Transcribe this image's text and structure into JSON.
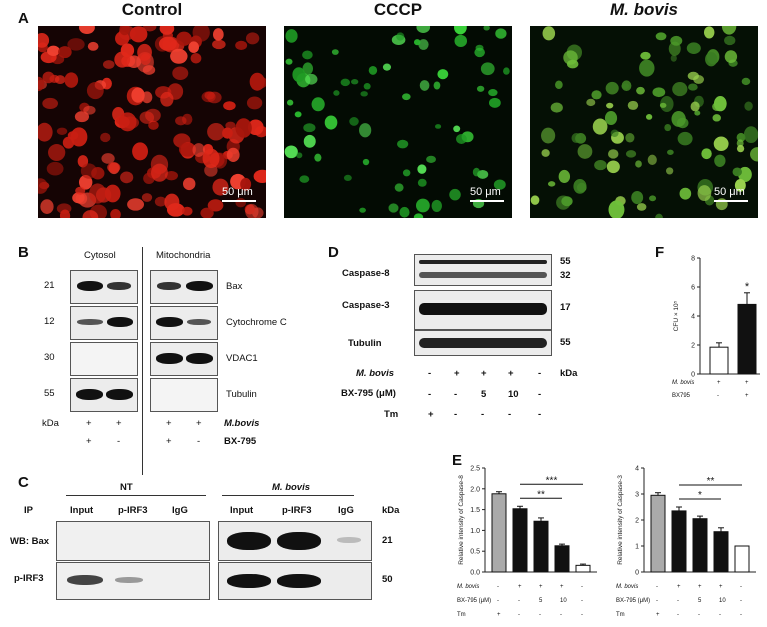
{
  "panelA": {
    "letter": "A",
    "titles": [
      "Control",
      "CCCP",
      "M. bovis"
    ],
    "scale": "50 μm"
  },
  "panelB": {
    "letter": "B",
    "cytosol": "Cytosol",
    "mito": "Mitochondria",
    "kda_values": [
      "21",
      "12",
      "30",
      "55"
    ],
    "proteins": [
      "Bax",
      "Cytochrome C",
      "VDAC1",
      "Tubulin"
    ],
    "kda": "kDa",
    "row1_label": "M.bovis",
    "row2_label": "BX-795",
    "row1": [
      "+",
      "+",
      "+",
      "+"
    ],
    "row2": [
      "+",
      "-",
      "+",
      "-"
    ]
  },
  "panelC": {
    "letter": "C",
    "ip": "IP",
    "nt": "NT",
    "mbovis": "M. bovis",
    "lanes": [
      "Input",
      "p-IRF3",
      "IgG"
    ],
    "kda": "kDa",
    "rows": [
      "WB: Bax",
      "p-IRF3"
    ],
    "kda_values": [
      "21",
      "50"
    ]
  },
  "panelD": {
    "letter": "D",
    "proteins": [
      "Caspase-8",
      "Caspase-3",
      "Tubulin"
    ],
    "kda_values": [
      "55",
      "32",
      "17",
      "55"
    ],
    "kda": "kDa",
    "row_labels": [
      "M. bovis",
      "BX-795 (μM)",
      "Tm"
    ],
    "rows": [
      [
        "-",
        "+",
        "+",
        "+",
        "-"
      ],
      [
        "-",
        "-",
        "5",
        "10",
        "-"
      ],
      [
        "+",
        "-",
        "-",
        "-",
        "-"
      ]
    ]
  },
  "panelE": {
    "letter": "E",
    "row_labels": [
      "M. bovis",
      "BX-795 (μM)",
      "Tm"
    ],
    "rows": [
      [
        "-",
        "+",
        "+",
        "+",
        "-"
      ],
      [
        "-",
        "-",
        "5",
        "10",
        "-"
      ],
      [
        "+",
        "-",
        "-",
        "-",
        "-"
      ]
    ]
  },
  "panelF": {
    "letter": "F",
    "row_labels": [
      "M. bovis",
      "BX795"
    ],
    "rows": [
      [
        "+",
        "+"
      ],
      [
        "-",
        "+"
      ]
    ]
  },
  "chart_data": [
    {
      "type": "bar",
      "ylabel": "Relative intensity of Caspase-8",
      "ylim": [
        0,
        2.5
      ],
      "yticks": [
        "0.0",
        "0.5",
        "1.0",
        "1.5",
        "2.0",
        "2.5"
      ],
      "values": [
        1.88,
        1.52,
        1.22,
        0.63,
        0.16
      ],
      "errors": [
        0.05,
        0.06,
        0.08,
        0.04,
        0.03
      ],
      "colors": [
        "#aaaaaa",
        "#111111",
        "#111111",
        "#111111",
        "#ffffff"
      ],
      "significance": [
        {
          "from": 1,
          "to": 3,
          "label": "**"
        },
        {
          "from": 1,
          "to": 4,
          "label": "***"
        }
      ]
    },
    {
      "type": "bar",
      "ylabel": "Relative intensity of Caspase-3",
      "ylim": [
        0,
        4
      ],
      "yticks": [
        "0",
        "1",
        "2",
        "3",
        "4"
      ],
      "values": [
        2.95,
        2.35,
        2.05,
        1.55,
        1.0
      ],
      "errors": [
        0.1,
        0.15,
        0.1,
        0.15,
        0.0
      ],
      "colors": [
        "#aaaaaa",
        "#111111",
        "#111111",
        "#111111",
        "#ffffff"
      ],
      "significance": [
        {
          "from": 1,
          "to": 3,
          "label": "*"
        },
        {
          "from": 1,
          "to": 4,
          "label": "**"
        }
      ]
    },
    {
      "type": "bar",
      "ylabel": "CFU × 10⁵",
      "ylim": [
        0,
        8
      ],
      "yticks": [
        "0",
        "2",
        "4",
        "6",
        "8"
      ],
      "values": [
        1.85,
        4.8
      ],
      "errors": [
        0.3,
        0.8
      ],
      "colors": [
        "#ffffff",
        "#111111"
      ],
      "significance": [
        {
          "bar": 1,
          "label": "*"
        }
      ]
    }
  ]
}
